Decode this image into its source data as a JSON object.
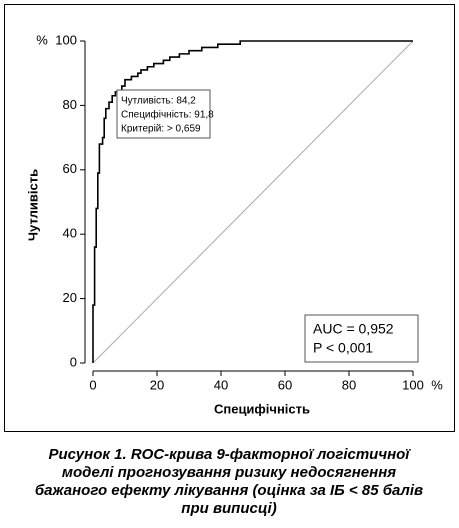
{
  "chart_data": {
    "type": "line",
    "x_label": "Специфічність",
    "y_label": "Чутливість",
    "x_unit": "%",
    "y_unit": "%",
    "xlim": [
      0,
      100
    ],
    "ylim": [
      0,
      100
    ],
    "xticks": [
      0,
      20,
      40,
      60,
      80,
      100
    ],
    "yticks": [
      0,
      20,
      40,
      60,
      80,
      100
    ],
    "color": "#000000",
    "x": [
      0,
      0,
      0.5,
      0.5,
      1,
      1,
      1.5,
      1.5,
      2,
      2,
      3,
      3,
      3.5,
      3.5,
      4,
      4,
      5,
      5,
      6,
      6,
      7,
      7,
      9,
      9,
      10,
      10,
      12,
      12,
      14,
      14,
      15,
      15,
      17,
      17,
      19,
      19,
      22,
      22,
      24,
      24,
      27,
      27,
      30,
      30,
      34,
      34,
      39,
      39,
      46,
      46,
      100
    ],
    "values": [
      0,
      18,
      18,
      36,
      36,
      48,
      48,
      59,
      59,
      68,
      68,
      70,
      70,
      76,
      76,
      79,
      79,
      81,
      81,
      83,
      83,
      84.2,
      84.2,
      86,
      86,
      88,
      88,
      89,
      89,
      90,
      90,
      91,
      91,
      92,
      92,
      93,
      93,
      94,
      94,
      95,
      95,
      96,
      96,
      97,
      97,
      98,
      98,
      99,
      99,
      100,
      100
    ],
    "diagonal": {
      "x": [
        0,
        100
      ],
      "values": [
        0,
        100
      ],
      "color": "#aaaaaa"
    },
    "criterion_box": [
      "Чутливість: 84,2",
      "Специфічність: 91,8",
      "Критерій: > 0,659"
    ],
    "stats_box": [
      "AUC = 0,952",
      "P < 0,001"
    ]
  },
  "caption": [
    "Рисунок 1. ROC-крива 9-факторної логістичної",
    "моделі прогнозування ризику недосягнення",
    "бажаного ефекту лікування (оцінка за ІБ < 85 балів",
    "при виписці)"
  ]
}
